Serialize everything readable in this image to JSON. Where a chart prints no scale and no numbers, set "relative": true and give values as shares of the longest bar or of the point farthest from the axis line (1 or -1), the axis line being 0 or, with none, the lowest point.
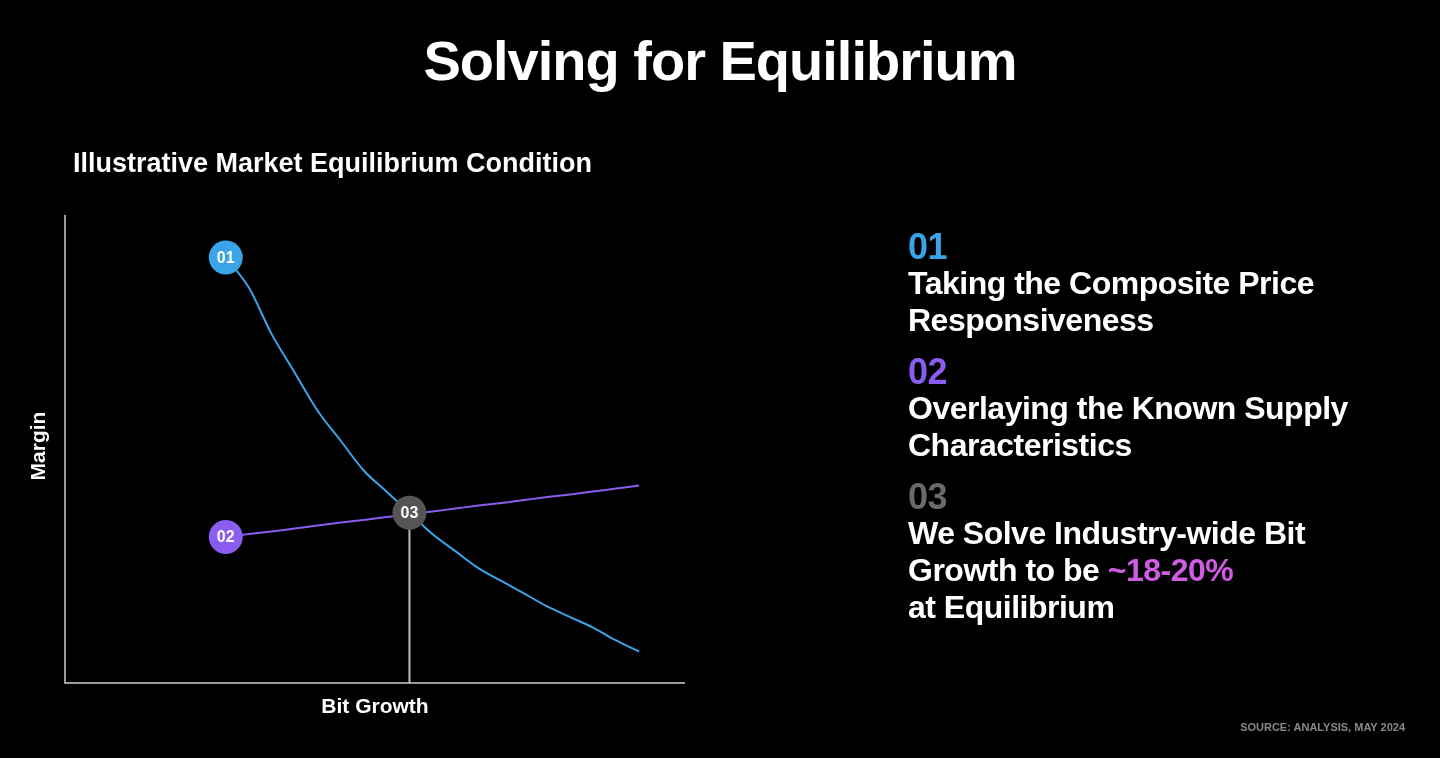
{
  "chart_data": {
    "type": "line",
    "title": "Solving for Equilibrium",
    "subtitle": "Illustrative Market Equilibrium Condition",
    "xlabel": "Bit Growth",
    "ylabel": "Margin",
    "relative": true,
    "marker": "none",
    "line_style": "solid",
    "legend": false,
    "categories": [
      null,
      null,
      null,
      null,
      null,
      null,
      null,
      null,
      null,
      null,
      null,
      null,
      null,
      null,
      null,
      null,
      null,
      null,
      null,
      null,
      null,
      null,
      null,
      null,
      null,
      null,
      null,
      null
    ],
    "series": [
      {
        "name": "01",
        "color": "#3aa4e8",
        "values": [
          null,
          null,
          null,
          null,
          null,
          null,
          null,
          1,
          0.93,
          0.82,
          0.73,
          0.64,
          0.57,
          0.5,
          0.45,
          0.4,
          0.35,
          0.31,
          0.27,
          0.24,
          0.21,
          0.18,
          0.155,
          0.13,
          0.1,
          0.074,
          null,
          null
        ]
      },
      {
        "name": "02",
        "color": "#8a5cf0",
        "values": [
          null,
          null,
          null,
          null,
          null,
          null,
          null,
          0.343,
          0.35,
          0.356,
          0.363,
          0.37,
          0.377,
          0.383,
          0.39,
          0.397,
          0.403,
          0.41,
          0.417,
          0.423,
          0.43,
          0.437,
          0.443,
          0.45,
          0.457,
          0.464,
          null,
          null
        ]
      }
    ],
    "annotations": [
      {
        "text": "03",
        "y": 0.4
      },
      "01",
      "Taking the Composite Price Responsiveness",
      "02",
      "Overlaying the Known Supply Characteristics",
      "03",
      "We Solve Industry-wide Bit Growth to be",
      "~18-20%",
      "at Equilibrium",
      "SOURCE: ANALYSIS, MAY 2024"
    ]
  }
}
